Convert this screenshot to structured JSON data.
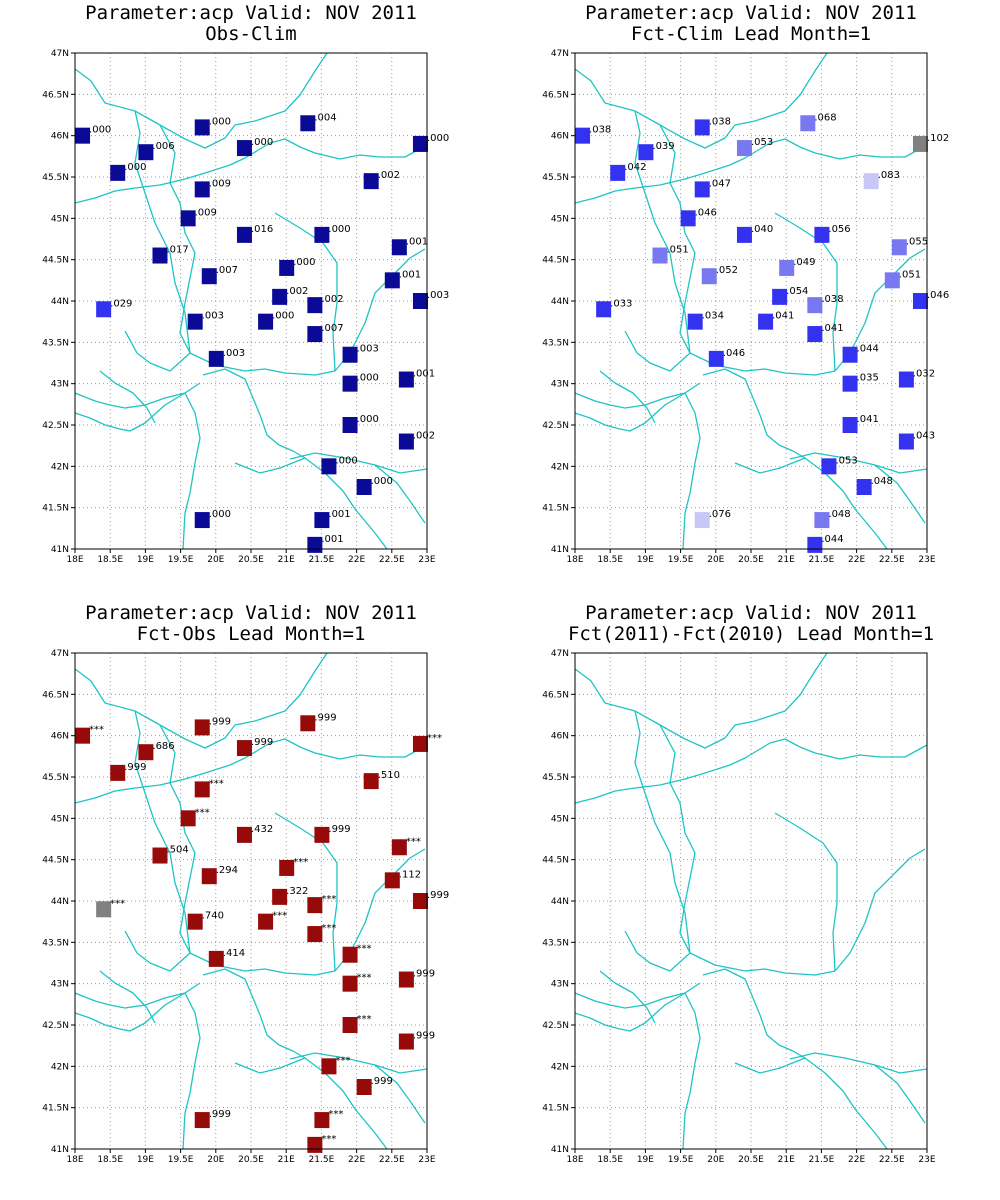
{
  "lon_ticks": [
    "18E",
    "18.5E",
    "19E",
    "19.5E",
    "20E",
    "20.5E",
    "21E",
    "21.5E",
    "22E",
    "22.5E",
    "23E"
  ],
  "lat_ticks": [
    "41N",
    "41.5N",
    "42N",
    "42.5N",
    "43N",
    "43.5N",
    "44N",
    "44.5N",
    "45N",
    "45.5N",
    "46N",
    "46.5N",
    "47N"
  ],
  "panels": [
    {
      "title1": "Parameter:acp Valid: NOV 2011",
      "title2": "Obs-Clim",
      "colors": [
        "#0a0a96",
        "#0a0a96",
        "#0a0a96",
        "#0a0a96",
        "#0a0a96",
        "#0a0a96",
        "#0a0a96",
        "#0a0a96",
        "#0a0a96",
        "#0a0a96",
        "#0a0a96",
        "#0a0a96",
        "#0a0a96",
        "#0a0a96",
        "#0a0a96",
        "#0a0a96",
        "#0a0a96",
        "#3232f0",
        "#0a0a96",
        "#0a0a96",
        "#0a0a96",
        "#0a0a96",
        "#0a0a96",
        "#0a0a96",
        "#0a0a96",
        "#0a0a96",
        "#0a0a96",
        "#0a0a96",
        "#0a0a96",
        "#0a0a96",
        "#0a0a96",
        "#0a0a96",
        "#0a0a96",
        "#0a0a96",
        "#0a0a96"
      ],
      "labels": [
        ".000",
        ".006",
        ".000",
        ".000",
        ".004",
        ".000",
        ".000",
        ".009",
        ".009",
        ".002",
        ".016",
        ".000",
        ".017",
        ".007",
        ".000",
        ".001",
        ".002",
        ".029",
        ".002",
        ".001",
        ".003",
        ".003",
        ".000",
        ".007",
        ".003",
        ".003",
        ".000",
        ".001",
        ".000",
        ".002",
        ".000",
        ".000",
        ".001",
        ".001",
        ".000"
      ]
    },
    {
      "title1": "Parameter:acp Valid: NOV 2011",
      "title2": "Fct-Clim Lead Month=1",
      "colors": [
        "#3232f0",
        "#3232f0",
        "#3232f0",
        "#7878f0",
        "#7878f0",
        "#808080",
        "#3232f0",
        "#3232f0",
        "#3232f0",
        "#c8c8f8",
        "#3232f0",
        "#3232f0",
        "#7878f0",
        "#7878f0",
        "#7878f0",
        "#7878f0",
        "#3232f0",
        "#3232f0",
        "#7878f0",
        "#7878f0",
        "#3232f0",
        "#3232f0",
        "#3232f0",
        "#3232f0",
        "#3232f0",
        "#3232f0",
        "#3232f0",
        "#3232f0",
        "#3232f0",
        "#3232f0",
        "#3232f0",
        "#3232f0",
        "#7878f0",
        "#3232f0",
        "#c8c8f8"
      ],
      "labels": [
        ".038",
        ".039",
        ".038",
        ".053",
        ".068",
        ".102",
        ".042",
        ".047",
        ".046",
        ".083",
        ".040",
        ".056",
        ".051",
        ".052",
        ".049",
        ".055",
        ".054",
        ".033",
        ".038",
        ".051",
        ".046",
        ".034",
        ".041",
        ".041",
        ".046",
        ".044",
        ".035",
        ".032",
        ".041",
        ".043",
        ".053",
        ".048",
        ".048",
        ".044",
        ".076"
      ]
    },
    {
      "title1": "Parameter:acp Valid: NOV 2011",
      "title2": "Fct-Obs Lead Month=1",
      "colors": [
        "#960a0a",
        "#960a0a",
        "#960a0a",
        "#960a0a",
        "#960a0a",
        "#960a0a",
        "#960a0a",
        "#960a0a",
        "#960a0a",
        "#960a0a",
        "#960a0a",
        "#960a0a",
        "#960a0a",
        "#960a0a",
        "#960a0a",
        "#960a0a",
        "#960a0a",
        "#808080",
        "#960a0a",
        "#960a0a",
        "#960a0a",
        "#960a0a",
        "#960a0a",
        "#960a0a",
        "#960a0a",
        "#960a0a",
        "#960a0a",
        "#960a0a",
        "#960a0a",
        "#960a0a",
        "#960a0a",
        "#960a0a",
        "#960a0a",
        "#960a0a",
        "#960a0a"
      ],
      "labels": [
        "***",
        ".686",
        ".999",
        ".999",
        ".999",
        "***",
        ".999",
        "***",
        "***",
        ".510",
        ".432",
        ".999",
        ".504",
        ".294",
        "***",
        "***",
        ".322",
        "***",
        "***",
        ".112",
        ".999",
        ".740",
        "***",
        "***",
        ".414",
        "***",
        "***",
        ".999",
        "***",
        ".999",
        "***",
        ".999",
        "***",
        "***",
        ".999"
      ]
    },
    {
      "title1": "Parameter:acp Valid: NOV 2011",
      "title2": "Fct(2011)-Fct(2010) Lead Month=1",
      "colors": [],
      "labels": []
    }
  ],
  "stations": [
    {
      "lon": 18.1,
      "lat": 46.0
    },
    {
      "lon": 19.0,
      "lat": 45.8
    },
    {
      "lon": 19.8,
      "lat": 46.1
    },
    {
      "lon": 20.4,
      "lat": 45.85
    },
    {
      "lon": 21.3,
      "lat": 46.15
    },
    {
      "lon": 22.9,
      "lat": 45.9
    },
    {
      "lon": 18.6,
      "lat": 45.55
    },
    {
      "lon": 19.8,
      "lat": 45.35
    },
    {
      "lon": 19.6,
      "lat": 45.0
    },
    {
      "lon": 22.2,
      "lat": 45.45
    },
    {
      "lon": 20.4,
      "lat": 44.8
    },
    {
      "lon": 21.5,
      "lat": 44.8
    },
    {
      "lon": 19.2,
      "lat": 44.55
    },
    {
      "lon": 19.9,
      "lat": 44.3
    },
    {
      "lon": 21.0,
      "lat": 44.4
    },
    {
      "lon": 22.6,
      "lat": 44.65
    },
    {
      "lon": 20.9,
      "lat": 44.05
    },
    {
      "lon": 18.4,
      "lat": 43.9
    },
    {
      "lon": 21.4,
      "lat": 43.95
    },
    {
      "lon": 22.5,
      "lat": 44.25
    },
    {
      "lon": 22.9,
      "lat": 44.0
    },
    {
      "lon": 19.7,
      "lat": 43.75
    },
    {
      "lon": 20.7,
      "lat": 43.75
    },
    {
      "lon": 21.4,
      "lat": 43.6
    },
    {
      "lon": 20.0,
      "lat": 43.3
    },
    {
      "lon": 21.9,
      "lat": 43.35
    },
    {
      "lon": 21.9,
      "lat": 43.0
    },
    {
      "lon": 22.7,
      "lat": 43.05
    },
    {
      "lon": 21.9,
      "lat": 42.5
    },
    {
      "lon": 22.7,
      "lat": 42.3
    },
    {
      "lon": 21.6,
      "lat": 42.0
    },
    {
      "lon": 22.1,
      "lat": 41.75
    },
    {
      "lon": 21.5,
      "lat": 41.35
    },
    {
      "lon": 21.4,
      "lat": 41.05
    },
    {
      "lon": 19.8,
      "lat": 41.35
    }
  ]
}
